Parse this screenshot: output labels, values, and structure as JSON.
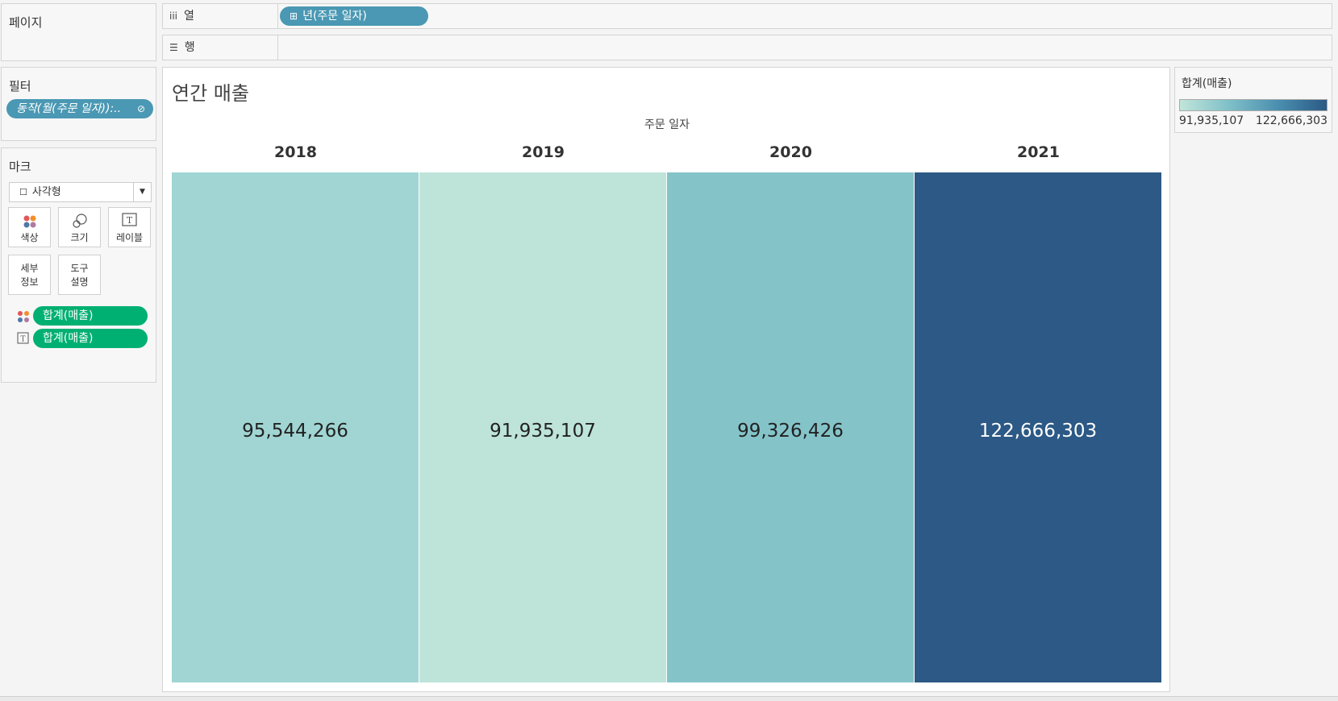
{
  "pages_panel": {
    "title": "페이지"
  },
  "columns_shelf": {
    "label": "열",
    "icon": "columns-icon",
    "pill": "년(주문 일자)",
    "pill_icon": "plus-box-icon"
  },
  "rows_shelf": {
    "label": "행",
    "icon": "rows-icon"
  },
  "filters_panel": {
    "title": "필터",
    "pill": "동작(월(주문 일자)):..",
    "pill_icon": "link-icon"
  },
  "marks_panel": {
    "title": "마크",
    "mark_type": "사각형",
    "cards": [
      {
        "label": "색상",
        "icon": "color-dots-icon"
      },
      {
        "label": "크기",
        "icon": "size-icon"
      },
      {
        "label": "레이블",
        "icon": "label-t-icon"
      },
      {
        "label_line1": "세부",
        "label_line2": "정보"
      },
      {
        "label_line1": "도구",
        "label_line2": "설명"
      }
    ],
    "fields": [
      {
        "icon": "color-dots-icon",
        "pill": "합계(매출)"
      },
      {
        "icon": "label-t-icon",
        "pill": "합계(매출)"
      }
    ]
  },
  "legend": {
    "title": "합계(매출)",
    "min_label": "91,935,107",
    "max_label": "122,666,303",
    "color_low": "#c1e5da",
    "color_high": "#2b5a85"
  },
  "chart_data": {
    "type": "table",
    "title": "연간 매출",
    "xlabel": "주문 일자",
    "categories": [
      "2018",
      "2019",
      "2020",
      "2021"
    ],
    "values": [
      95544266,
      91935107,
      99326426,
      122666303
    ],
    "value_labels": [
      "95,544,266",
      "91,935,107",
      "99,326,426",
      "122,666,303"
    ],
    "colors": [
      "#a0d5d3",
      "#bee4da",
      "#84c4c9",
      "#2c5985"
    ],
    "text_colors": [
      "#222222",
      "#222222",
      "#222222",
      "#ffffff"
    ]
  }
}
